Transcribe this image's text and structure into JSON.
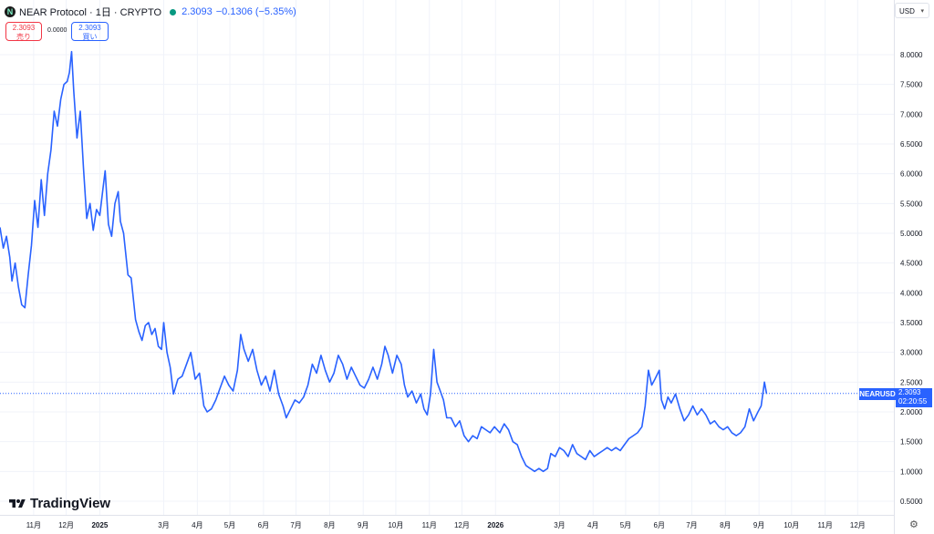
{
  "header": {
    "symbol_icon": "N",
    "title": "NEAR Protocol · 1日 · CRYPTO",
    "last": "2.3093",
    "change": "−0.1306",
    "change_pct": "(−5.35%)"
  },
  "trade": {
    "sell_price": "2.3093",
    "sell_label": "売り",
    "spread": "0.0000",
    "buy_price": "2.3093",
    "buy_label": "買い"
  },
  "currency": "USD",
  "price_tag": {
    "symbol": "NEARUSD",
    "price": "2.3093",
    "countdown": "02:20:55"
  },
  "logo": "TradingView",
  "colors": {
    "line": "#2962ff",
    "sell": "#f23645",
    "grid": "#f0f3fa"
  },
  "chart_data": {
    "type": "line",
    "series": [
      {
        "name": "NEARUSD",
        "points": [
          [
            "2024-10-01",
            5.1
          ],
          [
            "2024-10-04",
            4.75
          ],
          [
            "2024-10-07",
            4.95
          ],
          [
            "2024-10-10",
            4.6
          ],
          [
            "2024-10-12",
            4.2
          ],
          [
            "2024-10-15",
            4.5
          ],
          [
            "2024-10-18",
            4.1
          ],
          [
            "2024-10-21",
            3.8
          ],
          [
            "2024-10-24",
            3.75
          ],
          [
            "2024-10-27",
            4.3
          ],
          [
            "2024-10-30",
            4.8
          ],
          [
            "2024-11-02",
            5.55
          ],
          [
            "2024-11-05",
            5.1
          ],
          [
            "2024-11-08",
            5.9
          ],
          [
            "2024-11-11",
            5.3
          ],
          [
            "2024-11-14",
            6.0
          ],
          [
            "2024-11-17",
            6.4
          ],
          [
            "2024-11-20",
            7.05
          ],
          [
            "2024-11-23",
            6.8
          ],
          [
            "2024-11-26",
            7.25
          ],
          [
            "2024-11-29",
            7.5
          ],
          [
            "2024-12-02",
            7.55
          ],
          [
            "2024-12-04",
            7.7
          ],
          [
            "2024-12-06",
            8.05
          ],
          [
            "2024-12-08",
            7.4
          ],
          [
            "2024-12-11",
            6.6
          ],
          [
            "2024-12-14",
            7.05
          ],
          [
            "2024-12-17",
            6.1
          ],
          [
            "2024-12-20",
            5.25
          ],
          [
            "2024-12-23",
            5.5
          ],
          [
            "2024-12-26",
            5.05
          ],
          [
            "2024-12-29",
            5.4
          ],
          [
            "2025-01-01",
            5.3
          ],
          [
            "2025-01-04",
            5.75
          ],
          [
            "2025-01-06",
            6.05
          ],
          [
            "2025-01-09",
            5.15
          ],
          [
            "2025-01-12",
            4.95
          ],
          [
            "2025-01-15",
            5.5
          ],
          [
            "2025-01-18",
            5.7
          ],
          [
            "2025-01-20",
            5.2
          ],
          [
            "2025-01-23",
            5.0
          ],
          [
            "2025-01-27",
            4.3
          ],
          [
            "2025-01-30",
            4.25
          ],
          [
            "2025-02-03",
            3.55
          ],
          [
            "2025-02-06",
            3.35
          ],
          [
            "2025-02-09",
            3.2
          ],
          [
            "2025-02-12",
            3.45
          ],
          [
            "2025-02-15",
            3.5
          ],
          [
            "2025-02-18",
            3.3
          ],
          [
            "2025-02-21",
            3.4
          ],
          [
            "2025-02-24",
            3.1
          ],
          [
            "2025-02-27",
            3.05
          ],
          [
            "2025-03-01",
            3.5
          ],
          [
            "2025-03-04",
            3.0
          ],
          [
            "2025-03-07",
            2.75
          ],
          [
            "2025-03-10",
            2.3
          ],
          [
            "2025-03-14",
            2.55
          ],
          [
            "2025-03-18",
            2.6
          ],
          [
            "2025-03-22",
            2.8
          ],
          [
            "2025-03-26",
            3.0
          ],
          [
            "2025-03-30",
            2.55
          ],
          [
            "2025-04-03",
            2.65
          ],
          [
            "2025-04-07",
            2.1
          ],
          [
            "2025-04-10",
            2.0
          ],
          [
            "2025-04-14",
            2.05
          ],
          [
            "2025-04-18",
            2.2
          ],
          [
            "2025-04-22",
            2.4
          ],
          [
            "2025-04-26",
            2.6
          ],
          [
            "2025-04-30",
            2.45
          ],
          [
            "2025-05-04",
            2.35
          ],
          [
            "2025-05-08",
            2.7
          ],
          [
            "2025-05-11",
            3.3
          ],
          [
            "2025-05-14",
            3.05
          ],
          [
            "2025-05-18",
            2.85
          ],
          [
            "2025-05-22",
            3.05
          ],
          [
            "2025-05-26",
            2.7
          ],
          [
            "2025-05-30",
            2.45
          ],
          [
            "2025-06-03",
            2.6
          ],
          [
            "2025-06-07",
            2.35
          ],
          [
            "2025-06-11",
            2.7
          ],
          [
            "2025-06-15",
            2.3
          ],
          [
            "2025-06-19",
            2.1
          ],
          [
            "2025-06-22",
            1.9
          ],
          [
            "2025-06-26",
            2.05
          ],
          [
            "2025-06-30",
            2.2
          ],
          [
            "2025-07-04",
            2.15
          ],
          [
            "2025-07-08",
            2.25
          ],
          [
            "2025-07-12",
            2.45
          ],
          [
            "2025-07-16",
            2.8
          ],
          [
            "2025-07-20",
            2.65
          ],
          [
            "2025-07-24",
            2.95
          ],
          [
            "2025-07-28",
            2.7
          ],
          [
            "2025-08-01",
            2.5
          ],
          [
            "2025-08-05",
            2.65
          ],
          [
            "2025-08-09",
            2.95
          ],
          [
            "2025-08-13",
            2.8
          ],
          [
            "2025-08-17",
            2.55
          ],
          [
            "2025-08-21",
            2.75
          ],
          [
            "2025-08-25",
            2.6
          ],
          [
            "2025-08-29",
            2.45
          ],
          [
            "2025-09-02",
            2.4
          ],
          [
            "2025-09-06",
            2.55
          ],
          [
            "2025-09-10",
            2.75
          ],
          [
            "2025-09-14",
            2.55
          ],
          [
            "2025-09-18",
            2.8
          ],
          [
            "2025-09-21",
            3.1
          ],
          [
            "2025-09-24",
            2.95
          ],
          [
            "2025-09-28",
            2.65
          ],
          [
            "2025-10-02",
            2.95
          ],
          [
            "2025-10-06",
            2.8
          ],
          [
            "2025-10-09",
            2.45
          ],
          [
            "2025-10-12",
            2.25
          ],
          [
            "2025-10-16",
            2.35
          ],
          [
            "2025-10-20",
            2.15
          ],
          [
            "2025-10-24",
            2.3
          ],
          [
            "2025-10-27",
            2.05
          ],
          [
            "2025-10-30",
            1.95
          ],
          [
            "2025-11-02",
            2.3
          ],
          [
            "2025-11-05",
            3.05
          ],
          [
            "2025-11-08",
            2.5
          ],
          [
            "2025-11-11",
            2.35
          ],
          [
            "2025-11-14",
            2.2
          ],
          [
            "2025-11-17",
            1.9
          ],
          [
            "2025-11-21",
            1.9
          ],
          [
            "2025-11-25",
            1.75
          ],
          [
            "2025-11-29",
            1.85
          ],
          [
            "2025-12-03",
            1.6
          ],
          [
            "2025-12-07",
            1.5
          ],
          [
            "2025-12-11",
            1.6
          ],
          [
            "2025-12-15",
            1.55
          ],
          [
            "2025-12-19",
            1.75
          ],
          [
            "2025-12-23",
            1.7
          ],
          [
            "2025-12-27",
            1.65
          ],
          [
            "2025-12-31",
            1.75
          ],
          [
            "2026-01-05",
            1.65
          ],
          [
            "2026-01-09",
            1.8
          ],
          [
            "2026-01-13",
            1.7
          ],
          [
            "2026-01-17",
            1.5
          ],
          [
            "2026-01-21",
            1.45
          ],
          [
            "2026-01-25",
            1.25
          ],
          [
            "2026-01-29",
            1.1
          ],
          [
            "2026-02-02",
            1.05
          ],
          [
            "2026-02-06",
            1.0
          ],
          [
            "2026-02-10",
            1.05
          ],
          [
            "2026-02-14",
            1.0
          ],
          [
            "2026-02-18",
            1.05
          ],
          [
            "2026-02-21",
            1.3
          ],
          [
            "2026-02-25",
            1.25
          ],
          [
            "2026-03-01",
            1.4
          ],
          [
            "2026-03-05",
            1.35
          ],
          [
            "2026-03-09",
            1.25
          ],
          [
            "2026-03-13",
            1.45
          ],
          [
            "2026-03-17",
            1.3
          ],
          [
            "2026-03-21",
            1.25
          ],
          [
            "2026-03-25",
            1.2
          ],
          [
            "2026-03-29",
            1.35
          ],
          [
            "2026-04-02",
            1.25
          ],
          [
            "2026-04-06",
            1.3
          ],
          [
            "2026-04-10",
            1.35
          ],
          [
            "2026-04-14",
            1.4
          ],
          [
            "2026-04-18",
            1.35
          ],
          [
            "2026-04-22",
            1.4
          ],
          [
            "2026-04-26",
            1.35
          ],
          [
            "2026-04-30",
            1.45
          ],
          [
            "2026-05-04",
            1.55
          ],
          [
            "2026-05-08",
            1.6
          ],
          [
            "2026-05-12",
            1.65
          ],
          [
            "2026-05-16",
            1.75
          ],
          [
            "2026-05-19",
            2.1
          ],
          [
            "2026-05-22",
            2.7
          ],
          [
            "2026-05-25",
            2.45
          ],
          [
            "2026-05-28",
            2.55
          ],
          [
            "2026-06-01",
            2.7
          ],
          [
            "2026-06-03",
            2.2
          ],
          [
            "2026-06-06",
            2.05
          ],
          [
            "2026-06-09",
            2.25
          ],
          [
            "2026-06-12",
            2.15
          ],
          [
            "2026-06-16",
            2.3
          ],
          [
            "2026-06-20",
            2.05
          ],
          [
            "2026-06-24",
            1.85
          ],
          [
            "2026-06-28",
            1.95
          ],
          [
            "2026-07-02",
            2.1
          ],
          [
            "2026-07-06",
            1.95
          ],
          [
            "2026-07-10",
            2.05
          ],
          [
            "2026-07-14",
            1.95
          ],
          [
            "2026-07-18",
            1.8
          ],
          [
            "2026-07-22",
            1.85
          ],
          [
            "2026-07-26",
            1.75
          ],
          [
            "2026-07-30",
            1.7
          ],
          [
            "2026-08-03",
            1.75
          ],
          [
            "2026-08-07",
            1.65
          ],
          [
            "2026-08-11",
            1.6
          ],
          [
            "2026-08-15",
            1.65
          ],
          [
            "2026-08-19",
            1.75
          ],
          [
            "2026-08-23",
            2.05
          ],
          [
            "2026-08-27",
            1.85
          ],
          [
            "2026-08-31",
            2.0
          ],
          [
            "2026-09-03",
            2.1
          ],
          [
            "2026-09-06",
            2.5
          ],
          [
            "2026-09-08",
            2.3
          ]
        ]
      }
    ],
    "ylim": [
      0.25,
      8.5
    ],
    "yticks": [
      "8.0000",
      "7.5000",
      "7.0000",
      "6.5000",
      "6.0000",
      "5.5000",
      "5.0000",
      "4.5000",
      "4.0000",
      "3.5000",
      "3.0000",
      "2.5000",
      "2.0000",
      "1.5000",
      "1.0000",
      "0.5000"
    ],
    "xticks": [
      {
        "label": "11月",
        "date": "2024-11-01"
      },
      {
        "label": "12月",
        "date": "2024-12-01"
      },
      {
        "label": "2025",
        "date": "2025-01-01",
        "bold": true
      },
      {
        "label": "3月",
        "date": "2025-03-01"
      },
      {
        "label": "4月",
        "date": "2025-04-01"
      },
      {
        "label": "5月",
        "date": "2025-05-01"
      },
      {
        "label": "6月",
        "date": "2025-06-01"
      },
      {
        "label": "7月",
        "date": "2025-07-01"
      },
      {
        "label": "8月",
        "date": "2025-08-01"
      },
      {
        "label": "9月",
        "date": "2025-09-01"
      },
      {
        "label": "10月",
        "date": "2025-10-01"
      },
      {
        "label": "11月",
        "date": "2025-11-01"
      },
      {
        "label": "12月",
        "date": "2025-12-01"
      },
      {
        "label": "2026",
        "date": "2026-01-01",
        "bold": true
      },
      {
        "label": "3月",
        "date": "2026-03-01"
      },
      {
        "label": "4月",
        "date": "2026-04-01"
      },
      {
        "label": "5月",
        "date": "2026-05-01"
      },
      {
        "label": "6月",
        "date": "2026-06-01"
      },
      {
        "label": "7月",
        "date": "2026-07-01"
      },
      {
        "label": "8月",
        "date": "2026-08-01"
      },
      {
        "label": "9月",
        "date": "2026-09-01"
      },
      {
        "label": "10月",
        "date": "2026-10-01"
      },
      {
        "label": "11月",
        "date": "2026-11-01"
      },
      {
        "label": "12月",
        "date": "2026-12-01"
      }
    ],
    "xlim": [
      "2024-10-01",
      "2026-12-31"
    ],
    "last_price_line": 2.3093,
    "grid": true
  }
}
